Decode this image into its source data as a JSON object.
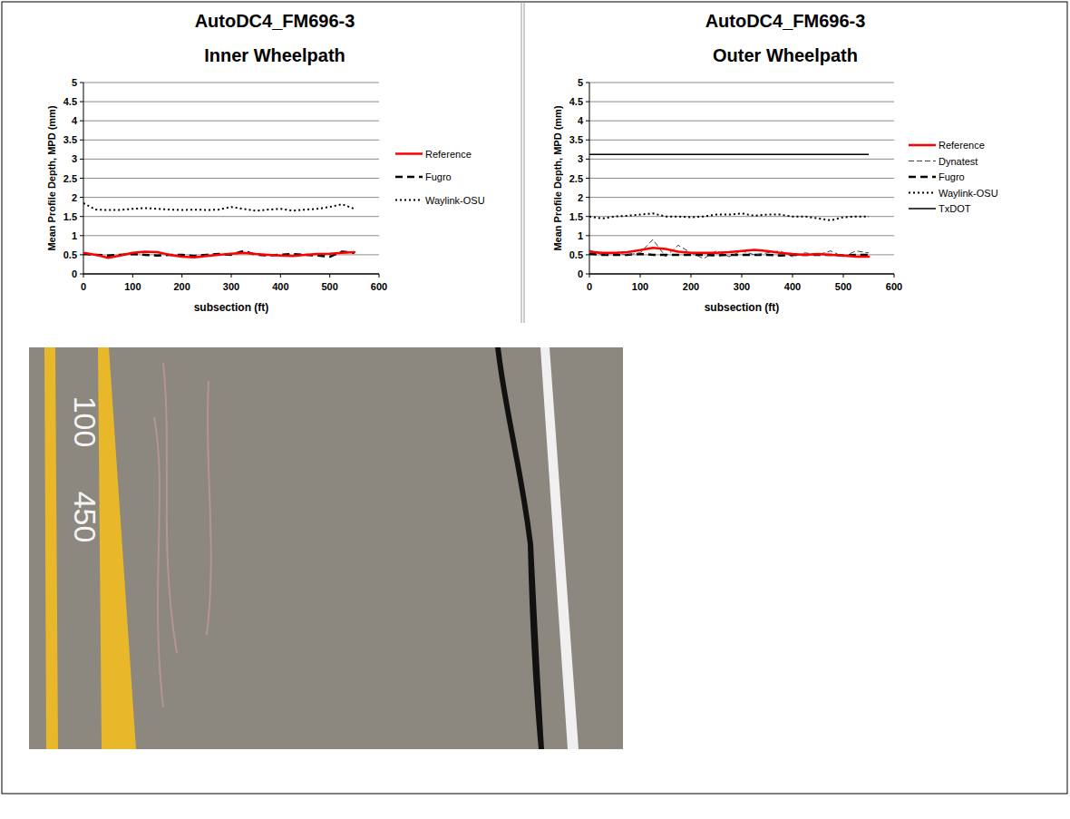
{
  "chart_data": [
    {
      "type": "line",
      "title": "AutoDC4_FM696-3",
      "subtitle": "Inner Wheelpath",
      "x_label": "subsection (ft)",
      "y_label": "Mean Profile Depth, MPD (mm)",
      "x": [
        0,
        25,
        50,
        75,
        100,
        125,
        150,
        175,
        200,
        225,
        250,
        275,
        300,
        325,
        350,
        375,
        400,
        425,
        450,
        475,
        500,
        525,
        550
      ],
      "series": [
        {
          "name": "Reference",
          "color": "#ff0000",
          "line_style": "solid",
          "values": [
            0.55,
            0.5,
            0.42,
            0.48,
            0.55,
            0.58,
            0.57,
            0.5,
            0.45,
            0.43,
            0.47,
            0.5,
            0.53,
            0.55,
            0.52,
            0.5,
            0.48,
            0.47,
            0.5,
            0.52,
            0.53,
            0.55,
            0.57
          ]
        },
        {
          "name": "Fugro",
          "color": "#000000",
          "line_style": "dashed",
          "values": [
            0.52,
            0.5,
            0.48,
            0.5,
            0.52,
            0.5,
            0.48,
            0.5,
            0.5,
            0.47,
            0.5,
            0.52,
            0.5,
            0.6,
            0.5,
            0.48,
            0.5,
            0.52,
            0.5,
            0.48,
            0.45,
            0.58,
            0.55
          ]
        },
        {
          "name": "Waylink-OSU",
          "color": "#000000",
          "line_style": "dotted",
          "values": [
            1.85,
            1.68,
            1.67,
            1.67,
            1.7,
            1.72,
            1.7,
            1.68,
            1.67,
            1.68,
            1.67,
            1.68,
            1.75,
            1.7,
            1.65,
            1.68,
            1.7,
            1.65,
            1.68,
            1.7,
            1.75,
            1.82,
            1.7
          ]
        }
      ],
      "xlim": [
        0,
        600
      ],
      "xticks": [
        0,
        100,
        200,
        300,
        400,
        500,
        600
      ],
      "ylim": [
        0,
        5
      ],
      "yticks": [
        0,
        0.5,
        1,
        1.5,
        2,
        2.5,
        3,
        3.5,
        4,
        4.5,
        5
      ],
      "grid": true,
      "legend": "right"
    },
    {
      "type": "line",
      "title": "AutoDC4_FM696-3",
      "subtitle": "Outer Wheelpath",
      "x_label": "subsection (ft)",
      "y_label": "Mean Profile Depth, MPD (mm)",
      "x": [
        0,
        25,
        50,
        75,
        100,
        125,
        150,
        175,
        200,
        225,
        250,
        275,
        300,
        325,
        350,
        375,
        400,
        425,
        450,
        475,
        500,
        525,
        550
      ],
      "series": [
        {
          "name": "Reference",
          "color": "#ff0000",
          "line_style": "solid",
          "values": [
            0.58,
            0.55,
            0.55,
            0.57,
            0.62,
            0.68,
            0.65,
            0.58,
            0.55,
            0.55,
            0.55,
            0.57,
            0.6,
            0.63,
            0.6,
            0.55,
            0.52,
            0.5,
            0.52,
            0.5,
            0.48,
            0.45,
            0.45
          ]
        },
        {
          "name": "Dynatest",
          "color": "#404040",
          "line_style": "dashed-thin",
          "values": [
            0.62,
            0.5,
            0.55,
            0.5,
            0.55,
            0.9,
            0.45,
            0.75,
            0.55,
            0.4,
            0.6,
            0.45,
            0.6,
            0.5,
            0.55,
            0.6,
            0.45,
            0.55,
            0.5,
            0.6,
            0.45,
            0.6,
            0.55
          ]
        },
        {
          "name": "Fugro",
          "color": "#000000",
          "line_style": "dashed",
          "values": [
            0.52,
            0.5,
            0.5,
            0.5,
            0.52,
            0.5,
            0.5,
            0.5,
            0.5,
            0.5,
            0.48,
            0.5,
            0.5,
            0.5,
            0.5,
            0.48,
            0.5,
            0.5,
            0.5,
            0.5,
            0.48,
            0.5,
            0.5
          ]
        },
        {
          "name": "Waylink-OSU",
          "color": "#000000",
          "line_style": "dotted",
          "values": [
            1.5,
            1.45,
            1.5,
            1.52,
            1.55,
            1.58,
            1.5,
            1.5,
            1.48,
            1.5,
            1.55,
            1.55,
            1.58,
            1.52,
            1.55,
            1.55,
            1.5,
            1.5,
            1.45,
            1.4,
            1.48,
            1.5,
            1.5
          ]
        },
        {
          "name": "TxDOT",
          "color": "#000000",
          "line_style": "solid",
          "values": [
            3.12,
            3.12,
            3.12,
            3.12,
            3.12,
            3.12,
            3.12,
            3.12,
            3.12,
            3.12,
            3.12,
            3.12,
            3.12,
            3.12,
            3.12,
            3.12,
            3.12,
            3.12,
            3.12,
            3.12,
            3.12,
            3.12,
            3.12
          ]
        }
      ],
      "xlim": [
        0,
        600
      ],
      "xticks": [
        0,
        100,
        200,
        300,
        400,
        500,
        600
      ],
      "ylim": [
        0,
        5
      ],
      "yticks": [
        0,
        0.5,
        1,
        1.5,
        2,
        2.5,
        3,
        3.5,
        4,
        4.5,
        5
      ],
      "grid": true,
      "legend": "right"
    }
  ],
  "photo": {
    "labels": [
      "100",
      "450"
    ]
  }
}
